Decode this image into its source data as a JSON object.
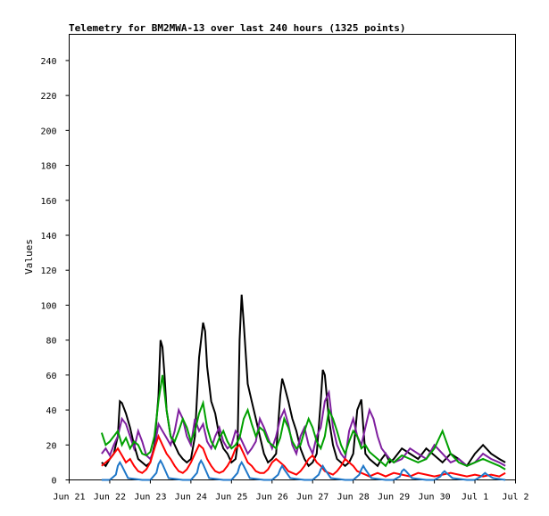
{
  "chart_data": {
    "type": "line",
    "title": "Telemetry for BM2MWA-13 over last 240 hours (1325 points)",
    "xlabel": "",
    "ylabel": "Values",
    "ylim": [
      0,
      255
    ],
    "yticks": [
      0,
      20,
      40,
      60,
      80,
      100,
      120,
      140,
      160,
      180,
      200,
      220,
      240
    ],
    "xlim": [
      0,
      11
    ],
    "xticks": [
      {
        "label": "Jun 21",
        "day": 0
      },
      {
        "label": "Jun 22",
        "day": 1
      },
      {
        "label": "Jun 23",
        "day": 2
      },
      {
        "label": "Jun 24",
        "day": 3
      },
      {
        "label": "Jun 25",
        "day": 4
      },
      {
        "label": "Jun 26",
        "day": 5
      },
      {
        "label": "Jun 27",
        "day": 6
      },
      {
        "label": "Jun 28",
        "day": 7
      },
      {
        "label": "Jun 29",
        "day": 8
      },
      {
        "label": "Jun 30",
        "day": 9
      },
      {
        "label": "Jul 1",
        "day": 10
      },
      {
        "label": "Jul 2",
        "day": 11
      }
    ],
    "grid": false,
    "legend": "none",
    "series": [
      {
        "color": "#000000",
        "x": [
          0.8,
          0.9,
          1.0,
          1.1,
          1.2,
          1.25,
          1.3,
          1.4,
          1.5,
          1.6,
          1.7,
          1.8,
          1.9,
          2.0,
          2.1,
          2.2,
          2.25,
          2.3,
          2.35,
          2.4,
          2.5,
          2.6,
          2.7,
          2.8,
          2.9,
          3.0,
          3.1,
          3.2,
          3.3,
          3.35,
          3.4,
          3.5,
          3.6,
          3.7,
          3.8,
          3.9,
          4.0,
          4.1,
          4.15,
          4.2,
          4.25,
          4.3,
          4.4,
          4.5,
          4.6,
          4.7,
          4.8,
          4.9,
          5.0,
          5.1,
          5.2,
          5.25,
          5.3,
          5.4,
          5.5,
          5.6,
          5.7,
          5.8,
          5.9,
          6.0,
          6.1,
          6.2,
          6.25,
          6.3,
          6.4,
          6.5,
          6.6,
          6.7,
          6.8,
          6.9,
          7.0,
          7.1,
          7.2,
          7.25,
          7.3,
          7.4,
          7.5,
          7.6,
          7.7,
          7.8,
          7.9,
          8.0,
          8.2,
          8.4,
          8.6,
          8.8,
          9.0,
          9.2,
          9.4,
          9.6,
          9.8,
          10.0,
          10.2,
          10.4,
          10.6,
          10.75
        ],
        "y": [
          10,
          8,
          12,
          15,
          25,
          45,
          44,
          38,
          30,
          20,
          12,
          10,
          8,
          10,
          20,
          48,
          80,
          76,
          60,
          40,
          25,
          20,
          15,
          12,
          10,
          12,
          25,
          70,
          90,
          85,
          65,
          45,
          38,
          25,
          18,
          15,
          10,
          12,
          20,
          80,
          106,
          90,
          55,
          45,
          35,
          25,
          15,
          10,
          12,
          15,
          48,
          58,
          54,
          45,
          35,
          28,
          18,
          12,
          8,
          10,
          15,
          45,
          63,
          60,
          35,
          20,
          12,
          10,
          8,
          10,
          15,
          40,
          46,
          30,
          15,
          12,
          10,
          8,
          12,
          15,
          10,
          12,
          18,
          15,
          12,
          18,
          14,
          10,
          15,
          12,
          8,
          15,
          20,
          15,
          12,
          10
        ]
      },
      {
        "color": "#7f1f9f",
        "x": [
          0.8,
          0.9,
          1.0,
          1.1,
          1.2,
          1.3,
          1.4,
          1.5,
          1.6,
          1.7,
          1.8,
          1.9,
          2.0,
          2.1,
          2.2,
          2.3,
          2.4,
          2.5,
          2.6,
          2.7,
          2.8,
          2.9,
          3.0,
          3.1,
          3.2,
          3.3,
          3.4,
          3.5,
          3.6,
          3.7,
          3.8,
          3.9,
          4.0,
          4.1,
          4.2,
          4.3,
          4.4,
          4.5,
          4.6,
          4.7,
          4.8,
          4.9,
          5.0,
          5.1,
          5.2,
          5.3,
          5.4,
          5.5,
          5.6,
          5.7,
          5.8,
          5.9,
          6.0,
          6.1,
          6.2,
          6.3,
          6.4,
          6.5,
          6.6,
          6.7,
          6.8,
          6.9,
          7.0,
          7.1,
          7.2,
          7.3,
          7.4,
          7.5,
          7.6,
          7.7,
          7.8,
          7.9,
          8.0,
          8.2,
          8.4,
          8.6,
          8.8,
          9.0,
          9.2,
          9.4,
          9.6,
          9.8,
          10.0,
          10.2,
          10.4,
          10.6,
          10.75
        ],
        "y": [
          15,
          18,
          14,
          20,
          25,
          35,
          32,
          25,
          18,
          28,
          22,
          14,
          12,
          18,
          32,
          28,
          24,
          20,
          28,
          40,
          35,
          25,
          20,
          35,
          28,
          32,
          22,
          18,
          25,
          30,
          22,
          18,
          20,
          28,
          25,
          20,
          15,
          18,
          22,
          35,
          30,
          24,
          18,
          25,
          35,
          40,
          32,
          20,
          15,
          25,
          30,
          20,
          15,
          25,
          30,
          45,
          50,
          30,
          20,
          15,
          12,
          28,
          35,
          25,
          20,
          30,
          40,
          35,
          25,
          18,
          15,
          12,
          10,
          12,
          18,
          15,
          12,
          20,
          15,
          10,
          12,
          8,
          10,
          15,
          12,
          10,
          8
        ]
      },
      {
        "color": "#00a000",
        "x": [
          0.8,
          0.9,
          1.0,
          1.1,
          1.2,
          1.3,
          1.4,
          1.5,
          1.6,
          1.7,
          1.8,
          1.9,
          2.0,
          2.1,
          2.2,
          2.3,
          2.4,
          2.5,
          2.6,
          2.7,
          2.8,
          2.9,
          3.0,
          3.1,
          3.2,
          3.3,
          3.4,
          3.5,
          3.6,
          3.7,
          3.8,
          3.9,
          4.0,
          4.1,
          4.2,
          4.3,
          4.4,
          4.5,
          4.6,
          4.7,
          4.8,
          4.9,
          5.0,
          5.1,
          5.2,
          5.3,
          5.4,
          5.5,
          5.6,
          5.7,
          5.8,
          5.9,
          6.0,
          6.1,
          6.2,
          6.3,
          6.4,
          6.5,
          6.6,
          6.7,
          6.8,
          6.9,
          7.0,
          7.1,
          7.2,
          7.3,
          7.4,
          7.5,
          7.6,
          7.7,
          7.8,
          7.9,
          8.0,
          8.2,
          8.4,
          8.6,
          8.8,
          9.0,
          9.2,
          9.4,
          9.6,
          9.8,
          10.0,
          10.2,
          10.4,
          10.6,
          10.75
        ],
        "y": [
          27,
          20,
          22,
          25,
          28,
          20,
          24,
          18,
          22,
          20,
          15,
          14,
          16,
          25,
          45,
          60,
          40,
          25,
          22,
          28,
          35,
          30,
          22,
          28,
          38,
          44,
          30,
          22,
          18,
          24,
          28,
          22,
          18,
          20,
          24,
          35,
          40,
          32,
          25,
          30,
          28,
          22,
          20,
          18,
          24,
          35,
          30,
          22,
          18,
          20,
          28,
          35,
          30,
          22,
          18,
          25,
          40,
          35,
          28,
          20,
          15,
          22,
          28,
          25,
          18,
          20,
          16,
          14,
          12,
          10,
          8,
          12,
          10,
          14,
          12,
          10,
          12,
          18,
          28,
          15,
          10,
          8,
          10,
          12,
          10,
          8,
          6
        ]
      },
      {
        "color": "#ff0000",
        "x": [
          0.8,
          0.9,
          1.0,
          1.1,
          1.2,
          1.3,
          1.4,
          1.5,
          1.6,
          1.7,
          1.8,
          1.9,
          2.0,
          2.1,
          2.2,
          2.3,
          2.4,
          2.5,
          2.6,
          2.7,
          2.8,
          2.9,
          3.0,
          3.1,
          3.2,
          3.3,
          3.4,
          3.5,
          3.6,
          3.7,
          3.8,
          3.9,
          4.0,
          4.1,
          4.2,
          4.3,
          4.4,
          4.5,
          4.6,
          4.7,
          4.8,
          4.9,
          5.0,
          5.1,
          5.2,
          5.3,
          5.4,
          5.5,
          5.6,
          5.7,
          5.8,
          5.9,
          6.0,
          6.1,
          6.2,
          6.3,
          6.4,
          6.5,
          6.6,
          6.7,
          6.8,
          6.9,
          7.0,
          7.1,
          7.2,
          7.3,
          7.4,
          7.5,
          7.6,
          7.7,
          7.8,
          7.9,
          8.0,
          8.2,
          8.4,
          8.6,
          8.8,
          9.0,
          9.2,
          9.4,
          9.6,
          9.8,
          10.0,
          10.2,
          10.4,
          10.6,
          10.75
        ],
        "y": [
          8,
          10,
          12,
          15,
          18,
          14,
          10,
          12,
          8,
          5,
          4,
          6,
          10,
          18,
          25,
          20,
          15,
          12,
          8,
          5,
          4,
          6,
          10,
          15,
          20,
          18,
          12,
          8,
          5,
          4,
          5,
          8,
          12,
          18,
          20,
          15,
          10,
          8,
          5,
          4,
          4,
          6,
          10,
          12,
          10,
          8,
          5,
          4,
          3,
          5,
          8,
          12,
          14,
          10,
          8,
          5,
          4,
          3,
          5,
          8,
          12,
          10,
          8,
          5,
          4,
          3,
          2,
          3,
          4,
          3,
          2,
          3,
          4,
          3,
          2,
          4,
          3,
          2,
          3,
          4,
          3,
          2,
          3,
          2,
          3,
          2,
          4
        ]
      },
      {
        "color": "#1f77c8",
        "x": [
          0.8,
          1.0,
          1.15,
          1.2,
          1.25,
          1.3,
          1.45,
          1.8,
          2.0,
          2.15,
          2.2,
          2.25,
          2.3,
          2.45,
          2.8,
          3.0,
          3.15,
          3.2,
          3.25,
          3.3,
          3.45,
          3.8,
          4.0,
          4.15,
          4.2,
          4.25,
          4.3,
          4.45,
          4.8,
          5.0,
          5.15,
          5.2,
          5.25,
          5.3,
          5.45,
          5.8,
          6.0,
          6.15,
          6.2,
          6.25,
          6.3,
          6.45,
          6.8,
          7.0,
          7.15,
          7.2,
          7.25,
          7.3,
          7.45,
          7.8,
          8.0,
          8.15,
          8.2,
          8.25,
          8.3,
          8.45,
          8.8,
          9.0,
          9.15,
          9.2,
          9.25,
          9.3,
          9.45,
          9.8,
          10.0,
          10.15,
          10.2,
          10.25,
          10.3,
          10.45,
          10.75
        ],
        "y": [
          0,
          0,
          3,
          8,
          10,
          8,
          1,
          0,
          0,
          4,
          9,
          11,
          9,
          1,
          0,
          0,
          4,
          9,
          11,
          9,
          1,
          0,
          0,
          4,
          8,
          10,
          8,
          1,
          0,
          0,
          3,
          6,
          8,
          6,
          1,
          0,
          0,
          3,
          6,
          8,
          6,
          1,
          0,
          0,
          3,
          6,
          8,
          6,
          1,
          0,
          0,
          2,
          5,
          6,
          5,
          1,
          0,
          0,
          2,
          4,
          5,
          4,
          1,
          0,
          0,
          2,
          3,
          4,
          3,
          1,
          0
        ]
      }
    ]
  }
}
